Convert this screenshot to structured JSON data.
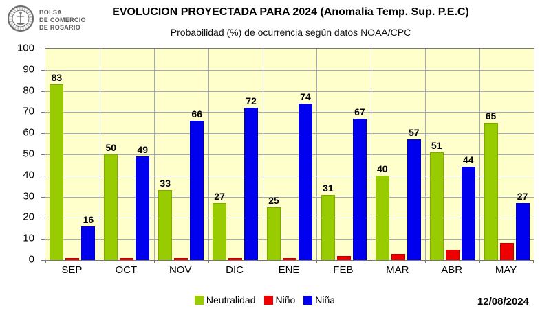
{
  "header": {
    "logo": {
      "icon": "bolsa-comercio-rosario-seal",
      "org_lines": [
        "BOLSA",
        "DE COMERCIO",
        "DE ROSARIO"
      ]
    },
    "title": "EVOLUCION PROYECTADA PARA 2024 (Anomalia Temp. Sup. P.E.C)",
    "subtitle": "Probabilidad (%) de ocurrencia según datos NOAA/CPC"
  },
  "chart_data": {
    "type": "bar",
    "title": "EVOLUCION PROYECTADA PARA 2024 (Anomalia Temp. Sup. P.E.C)",
    "subtitle": "Probabilidad (%) de ocurrencia según datos NOAA/CPC",
    "categories": [
      "SEP",
      "OCT",
      "NOV",
      "DIC",
      "ENE",
      "FEB",
      "MAR",
      "ABR",
      "MAY"
    ],
    "series": [
      {
        "name": "Neutralidad",
        "color": "#99CC00",
        "border": "#7FAA00",
        "labeled": true,
        "values": [
          83,
          50,
          33,
          27,
          25,
          31,
          40,
          51,
          65
        ]
      },
      {
        "name": "Niño",
        "color": "#EE0000",
        "border": "#C00000",
        "labeled": false,
        "values": [
          1,
          1,
          1,
          1,
          1,
          2,
          3,
          5,
          8
        ]
      },
      {
        "name": "Niña",
        "color": "#0000EE",
        "border": "#0000B8",
        "labeled": true,
        "values": [
          16,
          49,
          66,
          72,
          74,
          67,
          57,
          44,
          27
        ]
      }
    ],
    "xlabel": "",
    "ylabel": "",
    "ylim": [
      0,
      100
    ],
    "ytick_step": 10,
    "grid": true,
    "plot_bg": "#FFFFCC",
    "grid_color": "#A3AABF",
    "legend_position": "bottom"
  },
  "footer": {
    "date": "12/08/2024"
  }
}
